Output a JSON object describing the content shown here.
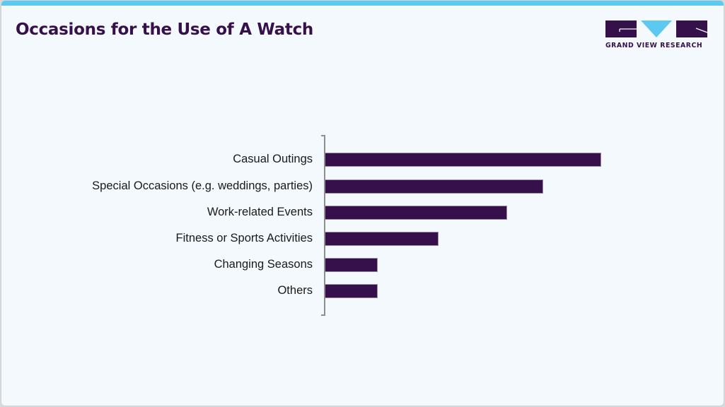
{
  "header": {
    "title": "Occasions for the Use of A Watch",
    "accent_bar_color": "#5dc9f1"
  },
  "logo": {
    "text": "GRAND VIEW RESEARCH",
    "primary_color": "#36104a",
    "accent_color": "#5dc9f1"
  },
  "chart_data": {
    "type": "bar",
    "orientation": "horizontal",
    "title": "Occasions for the Use of A Watch",
    "xlabel": "",
    "ylabel": "",
    "categories": [
      "Casual Outings",
      "Special Occasions (e.g. weddings, parties)",
      "Work-related Events",
      "Fitness or Sports Activities",
      "Changing Seasons",
      "Others"
    ],
    "values": [
      100,
      79,
      66,
      41,
      19,
      19
    ],
    "value_units": "relative (largest bar = 100, no axis scale shown)",
    "xlim": [
      0,
      100
    ],
    "grid": false,
    "legend": null,
    "bar_color": "#36104a"
  }
}
